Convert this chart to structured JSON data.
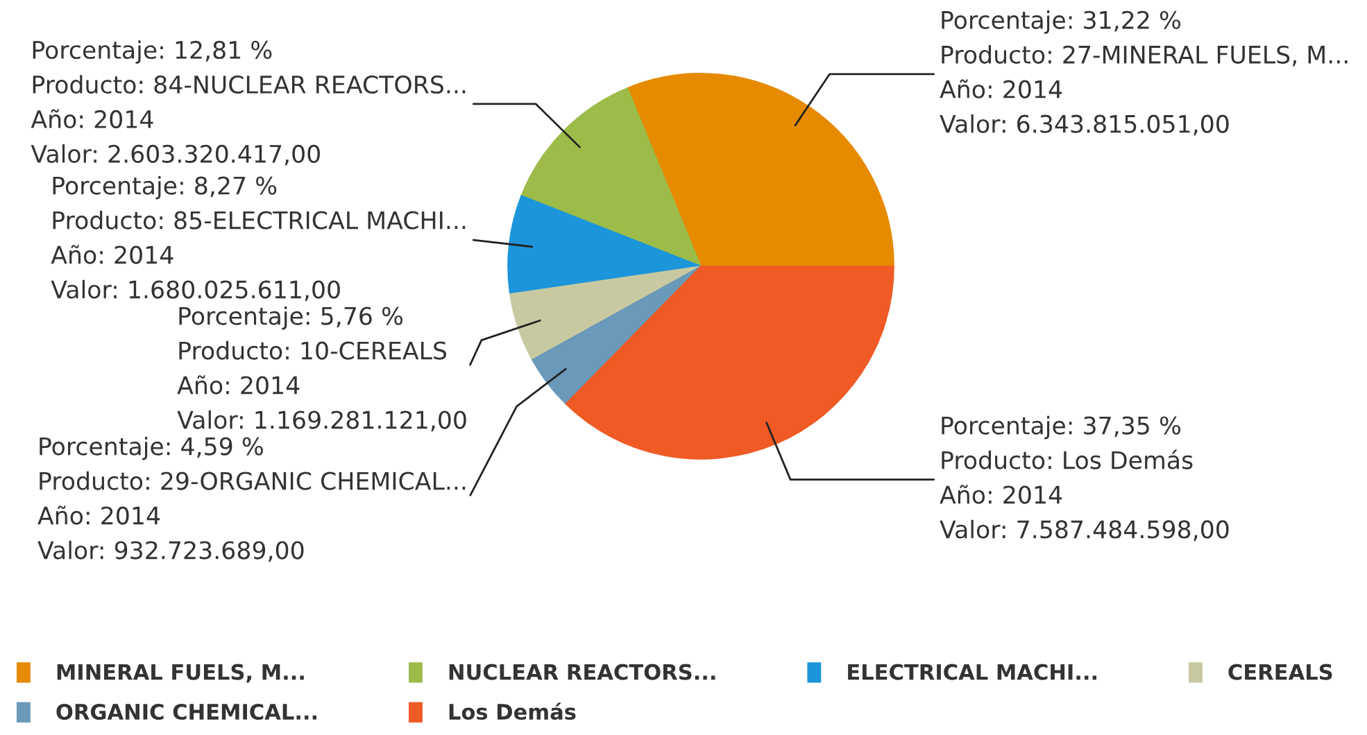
{
  "chart_data": {
    "type": "pie",
    "categories": [
      "MINERAL FUELS, M...",
      "NUCLEAR REACTORS...",
      "ELECTRICAL MACHI...",
      "CEREALS",
      "ORGANIC CHEMICAL...",
      "Los Demás"
    ],
    "values": [
      31.22,
      12.81,
      8.27,
      5.76,
      4.59,
      37.35
    ],
    "colors": [
      "#e68a00",
      "#9dbb48",
      "#1c95db",
      "#c9c9a1",
      "#6a99b9",
      "#f05a24"
    ],
    "value_labels": [
      "Porcentaje: 31,22 %\nProducto: 27-MINERAL FUELS, M...\nAño: 2014\nValor: 6.343.815.051,00",
      "Porcentaje: 12,81 %\nProducto: 84-NUCLEAR REACTORS...\nAño: 2014\nValor: 2.603.320.417,00",
      "Porcentaje: 8,27 %\nProducto: 85-ELECTRICAL MACHI...\nAño: 2014\nValor: 1.680.025.611,00",
      "Porcentaje: 5,76 %\nProducto: 10-CEREALS\nAño: 2014\nValor: 1.169.281.121,00",
      "Porcentaje: 4,59 %\nProducto: 29-ORGANIC CHEMICAL...\nAño: 2014\nValor: 932.723.689,00",
      "Porcentaje: 37,35 %\nProducto: Los Demás\nAño: 2014\nValor: 7.587.484.598,00"
    ],
    "legend": "bottom"
  }
}
